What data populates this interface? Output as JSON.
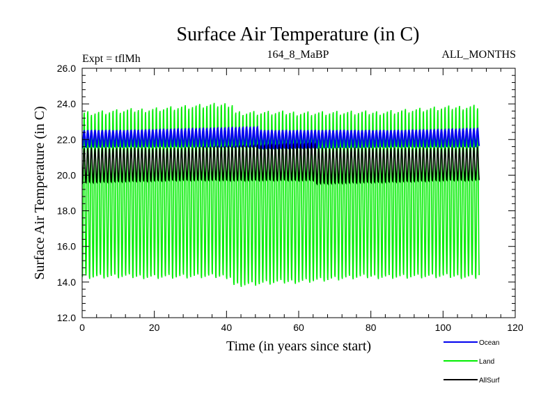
{
  "chart_data": {
    "type": "line",
    "title": "Surface Air Temperature (in C)",
    "subtitle_left": "Expt = tflMh",
    "subtitle_center": "164_8_MaBP",
    "subtitle_right": "ALL_MONTHS",
    "xlabel": "Time (in years since start)",
    "ylabel": "Surface Air Temperature (in C)",
    "xlim": [
      0,
      120
    ],
    "ylim": [
      12.0,
      26.0
    ],
    "x_ticks": [
      0,
      20,
      40,
      60,
      80,
      100,
      120
    ],
    "x_tick_labels": [
      "0",
      "20",
      "40",
      "60",
      "80",
      "100",
      "120"
    ],
    "y_ticks": [
      12.0,
      14.0,
      16.0,
      18.0,
      20.0,
      22.0,
      24.0,
      26.0
    ],
    "y_tick_labels": [
      "12.0",
      "14.0",
      "16.0",
      "18.0",
      "20.0",
      "22.0",
      "24.0",
      "26.0"
    ],
    "grid": false,
    "legend_position": "bottom-right outside",
    "x_end": 110,
    "series": [
      {
        "name": "Land",
        "color": "#00ee00",
        "mean": 18.9,
        "seasonal_max": 23.6,
        "seasonal_min": 14.2,
        "peak_max": 24.1,
        "trough_min": 13.7
      },
      {
        "name": "AllSurf",
        "color": "#000000",
        "mean": 20.6,
        "seasonal_max": 21.5,
        "seasonal_min": 19.7,
        "peak_max": 21.8,
        "trough_min": 19.5
      },
      {
        "name": "Ocean",
        "color": "#0000ee",
        "mean": 21.95,
        "seasonal_max": 22.5,
        "seasonal_min": 21.6,
        "peak_max": 22.7,
        "trough_min": 21.5
      }
    ],
    "legend_entries": [
      {
        "name": "Ocean",
        "color": "#0000ee"
      },
      {
        "name": "Land",
        "color": "#00ee00"
      },
      {
        "name": "AllSurf",
        "color": "#000000"
      }
    ]
  }
}
